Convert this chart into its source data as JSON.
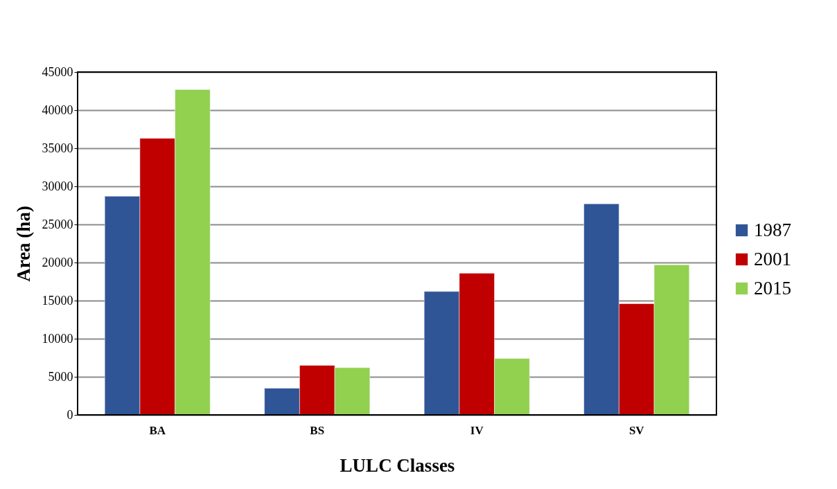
{
  "chart_data": {
    "type": "bar",
    "xlabel": "LULC Classes",
    "ylabel": "Area (ha)",
    "categories": [
      "BA",
      "BS",
      "IV",
      "SV"
    ],
    "series": [
      {
        "name": "1987",
        "color": "#2f5597",
        "values": [
          28700,
          3500,
          16200,
          27700
        ]
      },
      {
        "name": "2001",
        "color": "#c00000",
        "values": [
          36300,
          6500,
          18600,
          14600
        ]
      },
      {
        "name": "2015",
        "color": "#92d050",
        "values": [
          42700,
          6200,
          7400,
          19700
        ]
      }
    ],
    "ylim": [
      0,
      45000
    ],
    "yticks": [
      0,
      5000,
      10000,
      15000,
      20000,
      25000,
      30000,
      35000,
      40000,
      45000
    ],
    "grid": "y",
    "legend": "right"
  }
}
